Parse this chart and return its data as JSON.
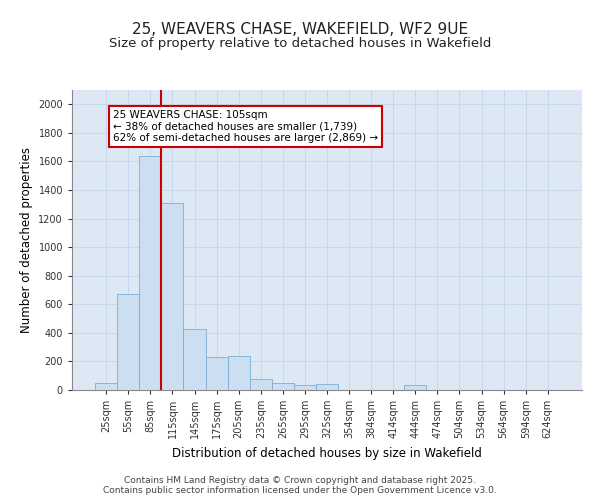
{
  "title_line1": "25, WEAVERS CHASE, WAKEFIELD, WF2 9UE",
  "title_line2": "Size of property relative to detached houses in Wakefield",
  "xlabel": "Distribution of detached houses by size in Wakefield",
  "ylabel": "Number of detached properties",
  "bar_color": "#ccdff2",
  "bar_edge_color": "#7aafd4",
  "grid_color": "#c8d8ea",
  "background_color": "#dce9f5",
  "annotation_box_color": "#cc0000",
  "annotation_text_line1": "25 WEAVERS CHASE: 105sqm",
  "annotation_text_line2": "← 38% of detached houses are smaller (1,739)",
  "annotation_text_line3": "62% of semi-detached houses are larger (2,869) →",
  "vline_color": "#cc0000",
  "categories": [
    "25sqm",
    "55sqm",
    "85sqm",
    "115sqm",
    "145sqm",
    "175sqm",
    "205sqm",
    "235sqm",
    "265sqm",
    "295sqm",
    "325sqm",
    "354sqm",
    "384sqm",
    "414sqm",
    "444sqm",
    "474sqm",
    "504sqm",
    "534sqm",
    "564sqm",
    "594sqm",
    "624sqm"
  ],
  "values": [
    50,
    670,
    1640,
    1310,
    430,
    230,
    235,
    80,
    50,
    35,
    45,
    0,
    0,
    0,
    35,
    0,
    0,
    0,
    0,
    0,
    0
  ],
  "ylim": [
    0,
    2100
  ],
  "yticks": [
    0,
    200,
    400,
    600,
    800,
    1000,
    1200,
    1400,
    1600,
    1800,
    2000
  ],
  "footer_line1": "Contains HM Land Registry data © Crown copyright and database right 2025.",
  "footer_line2": "Contains public sector information licensed under the Open Government Licence v3.0.",
  "title_fontsize": 11,
  "subtitle_fontsize": 9.5,
  "tick_fontsize": 7,
  "label_fontsize": 8.5,
  "footer_fontsize": 6.5,
  "annotation_fontsize": 7.5
}
